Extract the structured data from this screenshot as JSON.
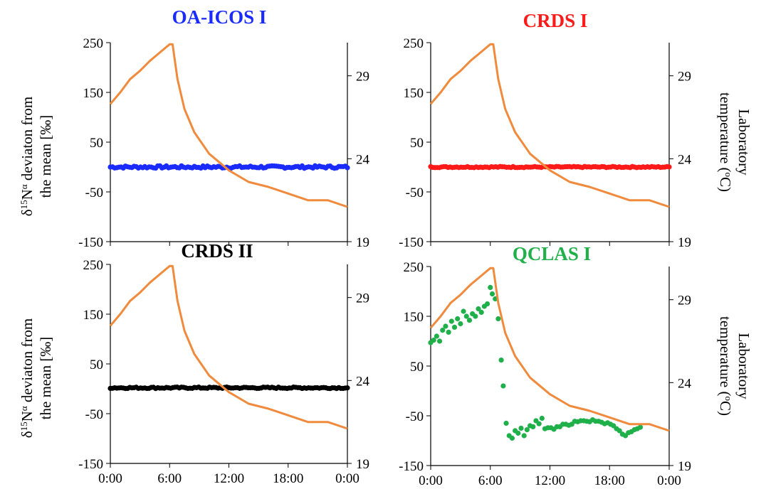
{
  "chart_data": [
    {
      "type": "scatter",
      "title": "OA-ICOS I",
      "title_color": "#1a2bff",
      "ylabel_left": "δ15Nα deviaton from the mean [‰]",
      "ylabel_right": "",
      "ylim": [
        -150,
        250
      ],
      "y2lim": [
        19,
        31
      ],
      "yticks": [
        "250",
        "150",
        "50",
        "-50",
        "-150"
      ],
      "y2ticks": [
        "29",
        "24",
        "19"
      ],
      "xticks": [],
      "xlim": [
        0,
        24
      ],
      "series": [
        {
          "kind": "points",
          "color": "#1a2bff",
          "x": [
            0,
            24
          ],
          "y": [
            0,
            0
          ],
          "noise": 2.5
        },
        {
          "kind": "line",
          "color": "#f08a3c",
          "x": [
            0,
            1,
            2,
            3,
            4,
            5,
            6,
            6.3,
            6.8,
            7.5,
            8.5,
            10,
            12,
            14,
            16,
            18,
            20,
            22,
            24
          ],
          "y": [
            27.3,
            28.0,
            28.8,
            29.3,
            29.9,
            30.4,
            30.9,
            30.9,
            28.8,
            27.0,
            25.6,
            24.3,
            23.3,
            22.6,
            22.3,
            21.9,
            21.5,
            21.5,
            21.1
          ]
        }
      ]
    },
    {
      "type": "scatter",
      "title": "CRDS I",
      "title_color": "#ff1a1a",
      "ylabel_left": "",
      "ylabel_right": "Laboratory temperature (°C)",
      "ylim": [
        -150,
        250
      ],
      "y2lim": [
        19,
        31
      ],
      "yticks": [
        "250",
        "150",
        "50",
        "-50",
        "-150"
      ],
      "y2ticks": [
        "29",
        "24",
        "19"
      ],
      "xticks": [],
      "xlim": [
        0,
        24
      ],
      "series": [
        {
          "kind": "points",
          "color": "#ff1a1a",
          "x": [
            0,
            24
          ],
          "y": [
            0,
            0
          ],
          "noise": 1.2
        },
        {
          "kind": "line",
          "color": "#f08a3c",
          "x": [
            0,
            1,
            2,
            3,
            4,
            5,
            6,
            6.3,
            6.8,
            7.5,
            8.5,
            10,
            12,
            14,
            16,
            18,
            20,
            22,
            24
          ],
          "y": [
            27.3,
            28.0,
            28.8,
            29.3,
            29.9,
            30.4,
            30.9,
            30.9,
            28.8,
            27.0,
            25.6,
            24.3,
            23.3,
            22.6,
            22.3,
            21.9,
            21.5,
            21.5,
            21.1
          ]
        }
      ]
    },
    {
      "type": "scatter",
      "title": "CRDS II",
      "title_color": "#000000",
      "ylabel_left": "δ15Nα deviaton from the mean [‰]",
      "ylabel_right": "",
      "ylim": [
        -150,
        250
      ],
      "y2lim": [
        19,
        31
      ],
      "yticks": [
        "250",
        "150",
        "50",
        "-50",
        "-150"
      ],
      "y2ticks": [
        "29",
        "24",
        "19"
      ],
      "xticks": [
        "0:00",
        "6:00",
        "12:00",
        "18:00",
        "0:00"
      ],
      "xlim": [
        0,
        24
      ],
      "series": [
        {
          "kind": "points",
          "color": "#000000",
          "x": [
            0,
            24
          ],
          "y": [
            2,
            2
          ],
          "noise": 1.5
        },
        {
          "kind": "line",
          "color": "#f08a3c",
          "x": [
            0,
            1,
            2,
            3,
            4,
            5,
            6,
            6.3,
            6.8,
            7.5,
            8.5,
            10,
            12,
            14,
            16,
            18,
            20,
            22,
            24
          ],
          "y": [
            27.3,
            28.0,
            28.8,
            29.3,
            29.9,
            30.4,
            30.9,
            30.9,
            28.8,
            27.0,
            25.6,
            24.3,
            23.3,
            22.6,
            22.3,
            21.9,
            21.5,
            21.5,
            21.1
          ]
        }
      ]
    },
    {
      "type": "scatter",
      "title": "QCLAS I",
      "title_color": "#1fb04a",
      "ylabel_left": "",
      "ylabel_right": "Laboratory temperature (°C)",
      "ylim": [
        -150,
        250
      ],
      "y2lim": [
        19,
        31
      ],
      "yticks": [
        "250",
        "150",
        "50",
        "-50",
        "-150"
      ],
      "y2ticks": [
        "29",
        "24",
        "19"
      ],
      "xticks": [
        "0:00",
        "6:00",
        "12:00",
        "18:00",
        "0:00"
      ],
      "xlim": [
        0,
        24
      ],
      "series": [
        {
          "kind": "scatter",
          "color": "#1fb04a",
          "x": [
            0.0,
            0.3,
            0.6,
            0.9,
            1.2,
            1.5,
            1.8,
            2.1,
            2.4,
            2.7,
            3.0,
            3.3,
            3.6,
            3.9,
            4.2,
            4.5,
            4.8,
            5.1,
            5.4,
            5.7,
            6.0,
            6.2,
            6.5,
            6.8,
            7.1,
            7.3,
            7.6,
            7.9,
            8.2,
            8.5,
            8.8,
            9.1,
            9.4,
            9.7,
            10.0,
            10.3,
            10.6,
            10.9,
            11.2,
            11.5,
            11.8,
            12.1,
            12.4,
            12.7,
            13.0,
            13.3,
            13.6,
            13.9,
            14.2,
            14.5,
            14.8,
            15.1,
            15.4,
            15.7,
            16.0,
            16.3,
            16.6,
            16.9,
            17.2,
            17.5,
            17.8,
            18.1,
            18.4,
            18.7,
            19.0,
            19.3,
            19.6,
            19.9,
            20.2,
            20.5,
            20.8,
            21.1
          ],
          "y": [
            97,
            102,
            110,
            100,
            122,
            130,
            118,
            140,
            128,
            145,
            135,
            160,
            150,
            142,
            155,
            150,
            165,
            158,
            170,
            175,
            208,
            195,
            185,
            145,
            62,
            10,
            -65,
            -90,
            -95,
            -80,
            -85,
            -75,
            -90,
            -78,
            -70,
            -72,
            -60,
            -66,
            -55,
            -76,
            -74,
            -74,
            -77,
            -72,
            -72,
            -67,
            -67,
            -69,
            -67,
            -61,
            -62,
            -60,
            -60,
            -61,
            -62,
            -58,
            -61,
            -61,
            -63,
            -66,
            -64,
            -67,
            -70,
            -76,
            -80,
            -87,
            -90,
            -84,
            -82,
            -78,
            -76,
            -73
          ]
        },
        {
          "kind": "line",
          "color": "#f08a3c",
          "x": [
            0,
            1,
            2,
            3,
            4,
            5,
            6,
            6.3,
            6.8,
            7.5,
            8.5,
            10,
            12,
            14,
            16,
            18,
            20,
            22,
            24
          ],
          "y": [
            27.3,
            28.0,
            28.8,
            29.3,
            29.9,
            30.4,
            30.9,
            30.9,
            28.8,
            27.0,
            25.6,
            24.3,
            23.3,
            22.6,
            22.3,
            21.9,
            21.5,
            21.5,
            21.1
          ]
        }
      ]
    }
  ]
}
